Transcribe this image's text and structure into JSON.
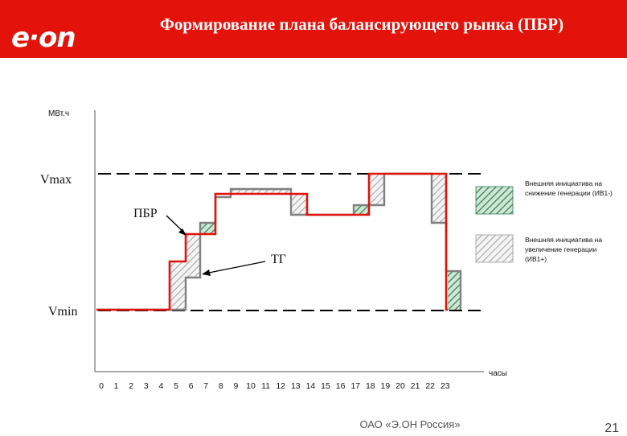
{
  "header": {
    "logo": "e·on",
    "title": "Формирование плана балансирующего рынка (ПБР)"
  },
  "diagram": {
    "y_axis_unit": "МВт.ч",
    "x_axis_unit": "часы",
    "level_max": "Vmax",
    "level_min": "Vmin",
    "label_pbr": "ПБР",
    "label_tg": "ТГ",
    "hours": [
      "0",
      "1",
      "2",
      "3",
      "4",
      "5",
      "6",
      "7",
      "8",
      "9",
      "10",
      "11",
      "12",
      "13",
      "14",
      "15",
      "16",
      "17",
      "18",
      "19",
      "20",
      "21",
      "22",
      "23"
    ],
    "legend": [
      {
        "text_lines": [
          "Внешняя инициатива на",
          "снижение генерации (ИВ1-)"
        ],
        "pattern": "green-hatch"
      },
      {
        "text_lines": [
          "Внешняя инициатива на",
          "увеличение генерации",
          "(ИВ1+)"
        ],
        "pattern": "gray-hatch"
      }
    ],
    "colors": {
      "pbr_line": "#e3120b",
      "tg_line": "#808080",
      "decrease_fill": "#2f7d4a",
      "increase_fill": "#b8b8b8"
    }
  },
  "footer": {
    "company": "ОАО «Э.ОН Россия»",
    "page_number": "21"
  }
}
